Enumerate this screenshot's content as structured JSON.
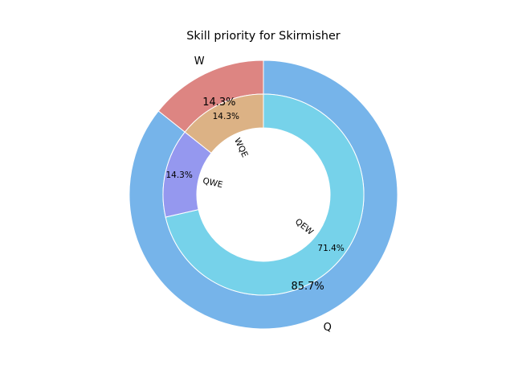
{
  "chart_data": {
    "type": "pie",
    "title": "Skill priority for Skirmisher",
    "rings": [
      {
        "ring": "outer",
        "slices": [
          {
            "label": "Q",
            "value": 85.7,
            "pct_label": "85.7%",
            "color": "#76b4ea"
          },
          {
            "label": "W",
            "value": 14.3,
            "pct_label": "14.3%",
            "color": "#dd8582"
          }
        ]
      },
      {
        "ring": "inner",
        "slices": [
          {
            "label": "QEW",
            "value": 71.4,
            "pct_label": "71.4%",
            "color": "#76d2ea"
          },
          {
            "label": "QWE",
            "value": 14.3,
            "pct_label": "14.3%",
            "color": "#9598ef"
          },
          {
            "label": "WQE",
            "value": 14.3,
            "pct_label": "14.3%",
            "color": "#dcb285"
          }
        ]
      }
    ]
  }
}
